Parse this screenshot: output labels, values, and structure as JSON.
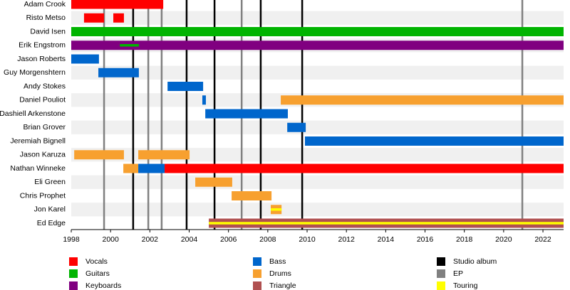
{
  "chart_data": {
    "type": "timeline",
    "xlim": [
      1998,
      2023.05
    ],
    "xticks": [
      1998,
      2000,
      2002,
      2004,
      2006,
      2008,
      2010,
      2012,
      2014,
      2016,
      2018,
      2020,
      2022
    ],
    "series": [
      {
        "name": "Vocals",
        "color": "#ff0000"
      },
      {
        "name": "Guitars",
        "color": "#00b400"
      },
      {
        "name": "Keyboards",
        "color": "#800080"
      },
      {
        "name": "Bass",
        "color": "#0066cc"
      },
      {
        "name": "Drums",
        "color": "#f7a02f"
      },
      {
        "name": "Triangle",
        "color": "#b05050"
      },
      {
        "name": "Studio album",
        "color": "#000000"
      },
      {
        "name": "EP",
        "color": "#808080"
      },
      {
        "name": "Touring",
        "color": "#ffff00"
      }
    ],
    "rows": [
      {
        "name": "Adam Crook",
        "bars": [
          {
            "series": 0,
            "start": 1998,
            "end": 2002.68
          }
        ]
      },
      {
        "name": "Risto Metso",
        "bars": [
          {
            "series": 0,
            "start": 1998.65,
            "end": 1999.67
          },
          {
            "series": 0,
            "start": 2000.14,
            "end": 2000.68
          }
        ]
      },
      {
        "name": "David Isen",
        "bars": [
          {
            "series": 1,
            "start": 1998,
            "end": 2023.05
          }
        ]
      },
      {
        "name": "Erik Engstrom",
        "bars": [
          {
            "series": 2,
            "start": 1998,
            "end": 2023.05
          },
          {
            "series": 1,
            "start": 2000.47,
            "end": 2001.44,
            "style": "thin"
          }
        ]
      },
      {
        "name": "Jason Roberts",
        "bars": [
          {
            "series": 3,
            "start": 1998,
            "end": 1999.41
          }
        ]
      },
      {
        "name": "Guy Morgenshtern",
        "bars": [
          {
            "series": 3,
            "start": 1999.38,
            "end": 2001.44
          }
        ]
      },
      {
        "name": "Andy Stokes",
        "bars": [
          {
            "series": 3,
            "start": 2002.9,
            "end": 2004.71
          }
        ]
      },
      {
        "name": "Daniel Pouliot",
        "bars": [
          {
            "series": 3,
            "start": 2004.67,
            "end": 2004.85
          },
          {
            "series": 4,
            "start": 2008.66,
            "end": 2023.05
          }
        ]
      },
      {
        "name": "Dashiell Arkenstone",
        "bars": [
          {
            "series": 3,
            "start": 2004.82,
            "end": 2009.02
          }
        ]
      },
      {
        "name": "Brian Grover",
        "bars": [
          {
            "series": 3,
            "start": 2008.99,
            "end": 2009.93
          }
        ]
      },
      {
        "name": "Jeremiah Bignell",
        "bars": [
          {
            "series": 3,
            "start": 2009.89,
            "end": 2023.05
          }
        ]
      },
      {
        "name": "Jason Karuza",
        "bars": [
          {
            "series": 4,
            "start": 1998.15,
            "end": 2000.68
          },
          {
            "series": 4,
            "start": 2001.41,
            "end": 2004.02
          }
        ]
      },
      {
        "name": "Nathan Winneke",
        "bars": [
          {
            "series": 4,
            "start": 2000.65,
            "end": 2001.41
          },
          {
            "series": 3,
            "start": 2001.41,
            "end": 2002.75
          },
          {
            "series": 0,
            "start": 2002.75,
            "end": 2023.05
          }
        ]
      },
      {
        "name": "Eli Green",
        "bars": [
          {
            "series": 4,
            "start": 2004.31,
            "end": 2006.19
          }
        ]
      },
      {
        "name": "Chris Prophet",
        "bars": [
          {
            "series": 4,
            "start": 2006.16,
            "end": 2008.19
          }
        ]
      },
      {
        "name": "Jon Karel",
        "bars": [
          {
            "series": 4,
            "start": 2008.15,
            "end": 2008.7
          },
          {
            "series": 8,
            "start": 2008.15,
            "end": 2008.7,
            "style": "thin"
          }
        ]
      },
      {
        "name": "Ed Edge",
        "bars": [
          {
            "series": 5,
            "start": 2005.0,
            "end": 2023.05
          },
          {
            "series": 8,
            "start": 2005.0,
            "end": 2023.05,
            "style": "thin"
          }
        ]
      }
    ],
    "markers": [
      {
        "series": 6,
        "x": 2001.15
      },
      {
        "series": 6,
        "x": 2003.87
      },
      {
        "series": 6,
        "x": 2005.29
      },
      {
        "series": 6,
        "x": 2007.64
      },
      {
        "series": 6,
        "x": 2009.75
      },
      {
        "series": 7,
        "x": 1999.67
      },
      {
        "series": 7,
        "x": 2001.92
      },
      {
        "series": 7,
        "x": 2002.6
      },
      {
        "series": 7,
        "x": 2006.67
      },
      {
        "series": 7,
        "x": 2020.95
      }
    ]
  }
}
